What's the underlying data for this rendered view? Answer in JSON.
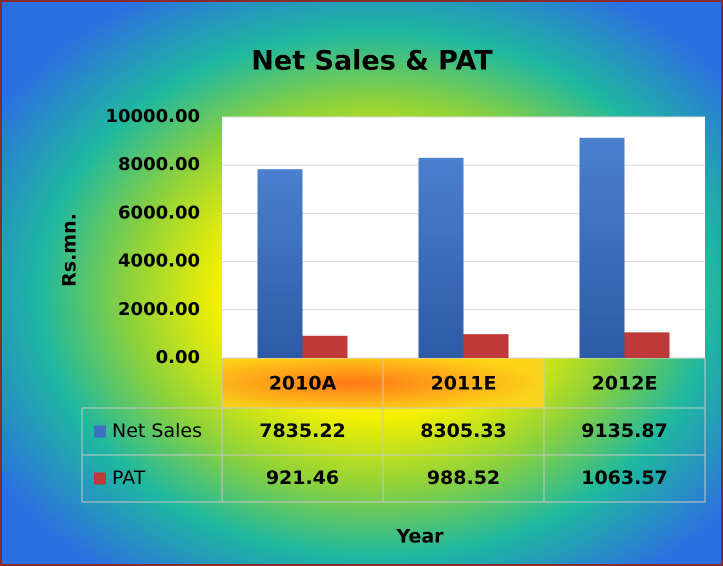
{
  "chart_data": {
    "type": "bar",
    "title": "Net Sales & PAT",
    "x_label": "Year",
    "y_label": "Rs.mn.",
    "categories": [
      "2010A",
      "2011E",
      "2012E"
    ],
    "series": [
      {
        "name": "Net Sales",
        "color": "#3d6fbf",
        "values": [
          7835.22,
          8305.33,
          9135.87
        ]
      },
      {
        "name": "PAT",
        "color": "#c0393a",
        "values": [
          921.46,
          988.52,
          1063.57
        ]
      }
    ],
    "ylim": [
      0,
      10000
    ],
    "yticks": [
      {
        "value": 0,
        "label": "0.00"
      },
      {
        "value": 2000,
        "label": "2000.00"
      },
      {
        "value": 4000,
        "label": "4000.00"
      },
      {
        "value": 6000,
        "label": "6000.00"
      },
      {
        "value": 8000,
        "label": "8000.00"
      },
      {
        "value": 10000,
        "label": "10000.00"
      }
    ],
    "grid": true
  }
}
